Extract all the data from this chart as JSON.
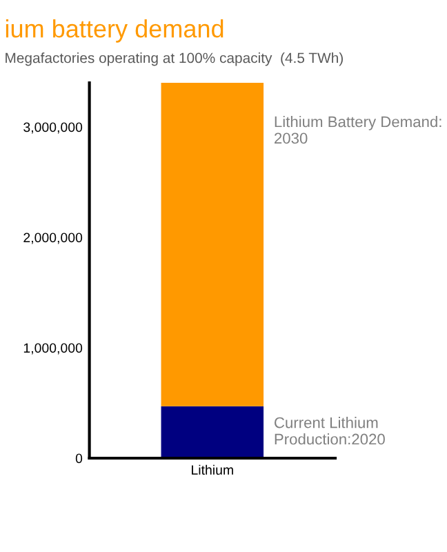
{
  "chart_data": {
    "type": "bar",
    "title": "ium battery demand",
    "subtitle": "Megafactories operating at 100% capacity  (4.5 TWh)",
    "categories": [
      "Lithium"
    ],
    "stacked": true,
    "series": [
      {
        "name": "Current Lithium Production:2020",
        "color": "#000080",
        "values": [
          470000
        ]
      },
      {
        "name": "Lithium Battery Demand: 2030",
        "color": "#ff9900",
        "values": [
          2930000
        ]
      }
    ],
    "ylim": [
      0,
      3400000
    ],
    "yticks": [
      {
        "value": 0,
        "label": "0"
      },
      {
        "value": 1000000,
        "label": "1,000,000"
      },
      {
        "value": 2000000,
        "label": "2,000,000"
      },
      {
        "value": 3000000,
        "label": "3,000,000"
      }
    ],
    "grid": false,
    "legend": false
  }
}
